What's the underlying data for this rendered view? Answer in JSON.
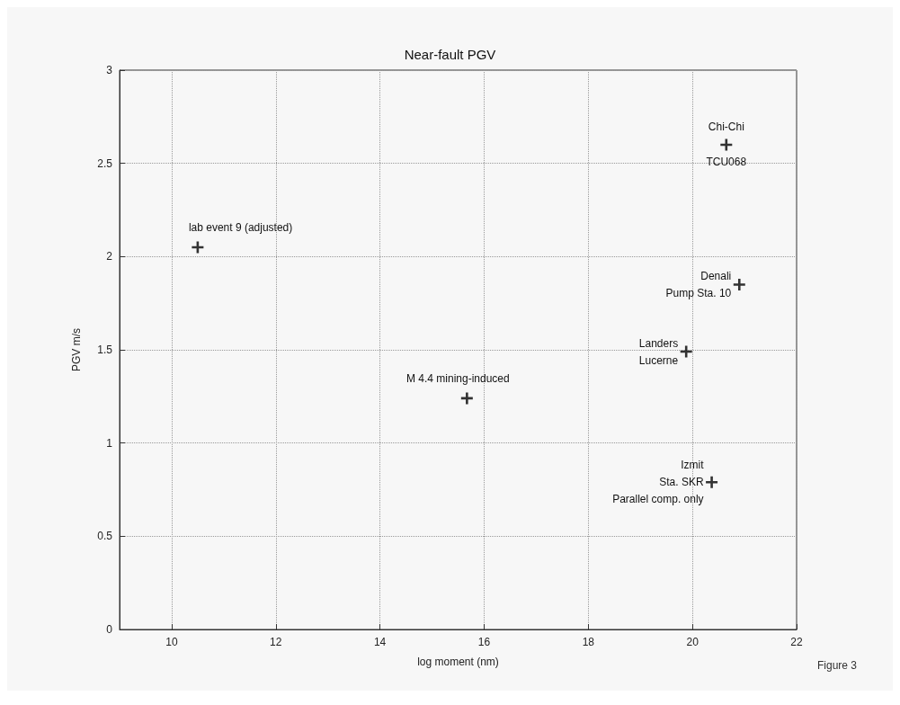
{
  "chart_data": {
    "type": "scatter",
    "title": "Near-fault PGV",
    "xlabel": "log moment (nm)",
    "ylabel": "PGV m/s",
    "series": [
      {
        "color": "#000000",
        "x": [
          10.5,
          15.67,
          19.88,
          20.37,
          20.9,
          20.65
        ],
        "values": [
          2.05,
          1.24,
          1.49,
          0.79,
          1.85,
          2.6
        ]
      }
    ],
    "xlim": [
      9,
      22
    ],
    "xticks": [
      10,
      12,
      14,
      16,
      18,
      20,
      22
    ],
    "ylim": [
      0,
      3
    ],
    "yticks": [
      0,
      0.5,
      1,
      1.5,
      2,
      2.5,
      3
    ],
    "grid": true,
    "marker": "cross",
    "annotations": [
      {
        "text": "lab event 9 (adjusted)",
        "x": 10.5,
        "y": 2.05
      },
      {
        "text": "M 4.4 mining-induced",
        "x": 15.67,
        "y": 1.24
      },
      {
        "text": "Landers\nLucerne",
        "x": 19.88,
        "y": 1.49
      },
      {
        "text": "Izmit\nSta. SKR\nParallel comp. only",
        "x": 20.37,
        "y": 0.79
      },
      {
        "text": "Denali\nPump Sta. 10",
        "x": 20.9,
        "y": 1.85
      },
      {
        "text": "Chi-Chi",
        "x": 20.65,
        "y": 2.6
      },
      {
        "text": "TCU068",
        "x": 20.65,
        "y": 2.6
      },
      "Figure 3"
    ]
  }
}
